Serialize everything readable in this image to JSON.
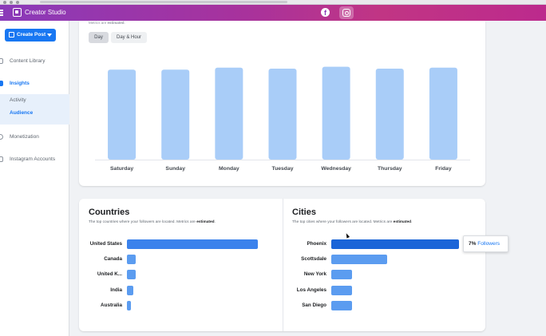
{
  "app": {
    "title": "Creator Studio"
  },
  "sidebar": {
    "create_post": "Create Post",
    "items": [
      {
        "label": "Content Library"
      },
      {
        "label": "Insights"
      },
      {
        "label": "Activity"
      },
      {
        "label": "Audience"
      },
      {
        "label": "Monetization"
      },
      {
        "label": "Instagram Accounts"
      }
    ]
  },
  "days_card": {
    "note_prefix": "Metrics are",
    "note_emph": "estimated",
    "tabs": [
      {
        "label": "Day"
      },
      {
        "label": "Day & Hour"
      }
    ]
  },
  "chart_data": {
    "type": "bar",
    "categories": [
      "Saturday",
      "Sunday",
      "Monday",
      "Tuesday",
      "Wednesday",
      "Thursday",
      "Friday"
    ],
    "values": [
      94,
      94,
      96,
      95,
      97,
      95,
      96
    ],
    "ylim": [
      0,
      100
    ],
    "color": "#a9cdf8"
  },
  "countries": {
    "title": "Countries",
    "subtitle": "The top countries where your followers are located. Metrics are",
    "subtitle_emph": "estimated",
    "rows": [
      {
        "label": "United States",
        "value": 100
      },
      {
        "label": "Canada",
        "value": 7
      },
      {
        "label": "United K...",
        "value": 7
      },
      {
        "label": "India",
        "value": 5
      },
      {
        "label": "Australia",
        "value": 3
      }
    ]
  },
  "cities": {
    "title": "Cities",
    "subtitle": "The top cities where your followers are located. Metrics are",
    "subtitle_emph": "estimated",
    "rows": [
      {
        "label": "Phoenix",
        "value": 100
      },
      {
        "label": "Scottsdale",
        "value": 44
      },
      {
        "label": "New York",
        "value": 16
      },
      {
        "label": "Los Angeles",
        "value": 16
      },
      {
        "label": "San Diego",
        "value": 16
      }
    ],
    "tooltip": {
      "value": "7%",
      "label": "Followers"
    }
  },
  "colors": {
    "accent": "#1877f2",
    "bar": "#5b9cf0",
    "bar_hover": "#1b65d8",
    "day_bar": "#a9cdf8"
  }
}
